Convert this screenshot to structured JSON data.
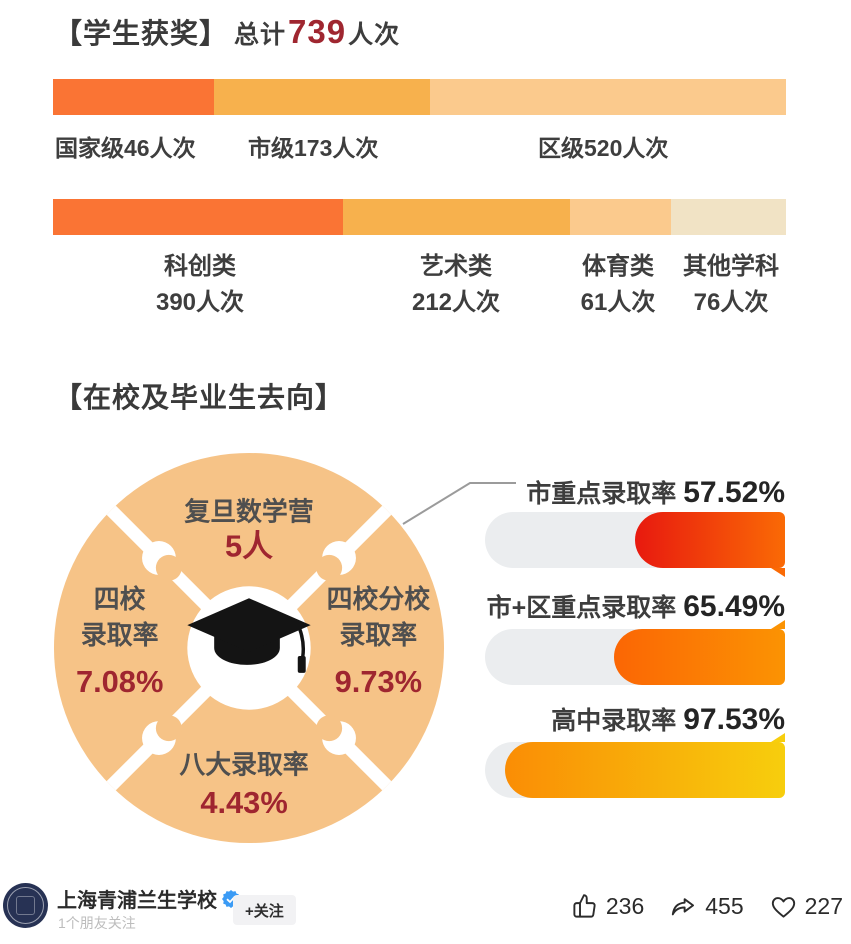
{
  "awards": {
    "section_title": "【学生获奖】",
    "total_prefix": "总计",
    "total_value": "739",
    "total_unit": "人次"
  },
  "destinations": {
    "section_title": "【在校及毕业生去向】"
  },
  "footer": {
    "account_name": "上海青浦兰生学校",
    "subtitle": "1个朋友关注",
    "follow_button": "+关注",
    "like_count": "236",
    "share_count": "455",
    "heart_count": "227"
  },
  "colors": {
    "accent_red": "#9f2630",
    "title_gray": "#3a3a3a",
    "puzzle_orange": "#f6c387",
    "track_gray": "#ebedef",
    "verified_blue": "#3b9bf5"
  },
  "chart_data": [
    {
      "type": "bar",
      "variant": "stacked-horizontal",
      "title": "学生获奖·按级别 总计739人次",
      "total": 739,
      "unit": "人次",
      "segments": [
        {
          "label": "国家级",
          "value": 46,
          "text": "国家级46人次",
          "color": "#fa7434",
          "width_pct": 22.0
        },
        {
          "label": "市级",
          "value": 173,
          "text": "市级173人次",
          "color": "#f7b14d",
          "width_pct": 29.5
        },
        {
          "label": "区级",
          "value": 520,
          "text": "区级520人次",
          "color": "#fbca8d",
          "width_pct": 48.5
        }
      ]
    },
    {
      "type": "bar",
      "variant": "stacked-horizontal",
      "title": "学生获奖·按类别",
      "unit": "人次",
      "segments": [
        {
          "label": "科创类",
          "value": 390,
          "text": "科创类",
          "text2": "390人次",
          "color": "#fa7434",
          "width_pct": 39.5
        },
        {
          "label": "艺术类",
          "value": 212,
          "text": "艺术类",
          "text2": "212人次",
          "color": "#f7b14d",
          "width_pct": 31.0
        },
        {
          "label": "体育类",
          "value": 61,
          "text": "体育类",
          "text2": "61人次",
          "color": "#fbca8d",
          "width_pct": 13.8
        },
        {
          "label": "其他学科",
          "value": 76,
          "text": "其他学科",
          "text2": "76人次",
          "color": "#f1e3c5",
          "width_pct": 15.7
        }
      ]
    },
    {
      "type": "pie",
      "variant": "puzzle-quadrants",
      "title": "在校及毕业生去向",
      "items": [
        {
          "position": "top",
          "label_lines": [
            "复旦数学营"
          ],
          "value": "5人"
        },
        {
          "position": "right",
          "label_lines": [
            "四校分校",
            "录取率"
          ],
          "value": "9.73%"
        },
        {
          "position": "bottom",
          "label_lines": [
            "八大录取率"
          ],
          "value": "4.43%"
        },
        {
          "position": "left",
          "label_lines": [
            "四校",
            "录取率"
          ],
          "value": "7.08%"
        }
      ]
    },
    {
      "type": "bar",
      "variant": "rounded-progress",
      "items": [
        {
          "label": "市重点录取率",
          "value": 57.52,
          "display": "57.52%",
          "fill_pct": 50,
          "gradient": [
            "#e8190f",
            "#fa6a05"
          ]
        },
        {
          "label": "市+区重点录取率",
          "value": 65.49,
          "display": "65.49%",
          "fill_pct": 57,
          "gradient": [
            "#fb6604",
            "#fb9303"
          ]
        },
        {
          "label": "高中录取率",
          "value": 97.53,
          "display": "97.53%",
          "fill_pct": 93.5,
          "gradient": [
            "#fa8d05",
            "#f7ce0d"
          ]
        }
      ]
    }
  ]
}
